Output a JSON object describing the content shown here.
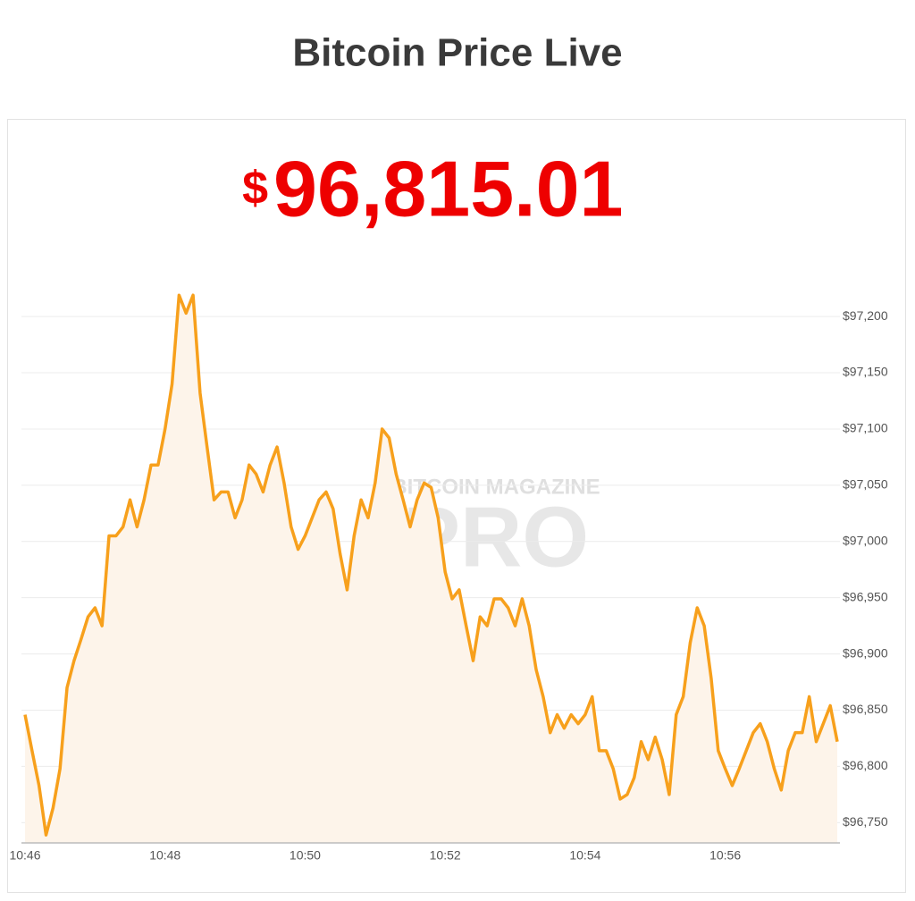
{
  "chart_data": {
    "type": "area",
    "title": "Bitcoin Price Live",
    "price_symbol": "$",
    "price": "96,815.01",
    "watermark": {
      "top": "BITCOIN MAGAZINE",
      "main": "PRO"
    },
    "color": "#f7a01c",
    "fill_color": "#fdf4ea",
    "grid": true,
    "categories": [
      "10:46",
      null,
      null,
      null,
      null,
      null,
      null,
      null,
      null,
      null,
      null,
      null,
      null,
      null,
      null,
      null,
      null,
      null,
      null,
      null,
      "10:48",
      null,
      null,
      null,
      null,
      null,
      null,
      null,
      null,
      null,
      null,
      null,
      null,
      null,
      null,
      null,
      null,
      null,
      null,
      null,
      "10:50",
      null,
      null,
      null,
      null,
      null,
      null,
      null,
      null,
      null,
      null,
      null,
      null,
      null,
      null,
      null,
      null,
      null,
      null,
      null,
      "10:52",
      null,
      null,
      null,
      null,
      null,
      null,
      null,
      null,
      null,
      null,
      null,
      null,
      null,
      null,
      null,
      null,
      null,
      null,
      null,
      "10:54",
      null,
      null,
      null,
      null,
      null,
      null,
      null,
      null,
      null,
      null,
      null,
      null,
      null,
      null,
      null,
      null,
      null,
      null,
      null,
      "10:56",
      null,
      null,
      null,
      null,
      null,
      null,
      null,
      null,
      null,
      null,
      null,
      null,
      null,
      null,
      null,
      null
    ],
    "values": [
      96846,
      96814,
      96783,
      96739,
      96763,
      96798,
      96870,
      96894,
      96913,
      96933,
      96941,
      96925,
      97005,
      97005,
      97013,
      97037,
      97013,
      97037,
      97068,
      97068,
      97100,
      97140,
      97219,
      97203,
      97219,
      97132,
      97084,
      97037,
      97044,
      97044,
      97021,
      97037,
      97068,
      97060,
      97044,
      97068,
      97084,
      97052,
      97013,
      96993,
      97005,
      97021,
      97037,
      97044,
      97029,
      96989,
      96957,
      97005,
      97037,
      97021,
      97052,
      97100,
      97092,
      97060,
      97037,
      97013,
      97037,
      97052,
      97048,
      97021,
      96973,
      96949,
      96957,
      96925,
      96894,
      96933,
      96925,
      96949,
      96949,
      96941,
      96925,
      96949,
      96925,
      96886,
      96862,
      96830,
      96846,
      96834,
      96846,
      96838,
      96846,
      96862,
      96814,
      96814,
      96798,
      96771,
      96775,
      96790,
      96822,
      96806,
      96826,
      96806,
      96775,
      96846,
      96862,
      96910,
      96941,
      96925,
      96878,
      96814,
      96798,
      96783,
      96798,
      96814,
      96830,
      96838,
      96822,
      96798,
      96779,
      96814,
      96830,
      96830,
      96862,
      96822,
      96838,
      96854,
      96822
    ],
    "ylim": [
      96732,
      97243
    ],
    "yticks": [
      {
        "value": 96750,
        "label": "$96,750"
      },
      {
        "value": 96800,
        "label": "$96,800"
      },
      {
        "value": 96850,
        "label": "$96,850"
      },
      {
        "value": 96900,
        "label": "$96,900"
      },
      {
        "value": 96950,
        "label": "$96,950"
      },
      {
        "value": 97000,
        "label": "$97,000"
      },
      {
        "value": 97050,
        "label": "$97,050"
      },
      {
        "value": 97100,
        "label": "$97,100"
      },
      {
        "value": 97150,
        "label": "$97,150"
      },
      {
        "value": 97200,
        "label": "$97,200"
      }
    ]
  }
}
